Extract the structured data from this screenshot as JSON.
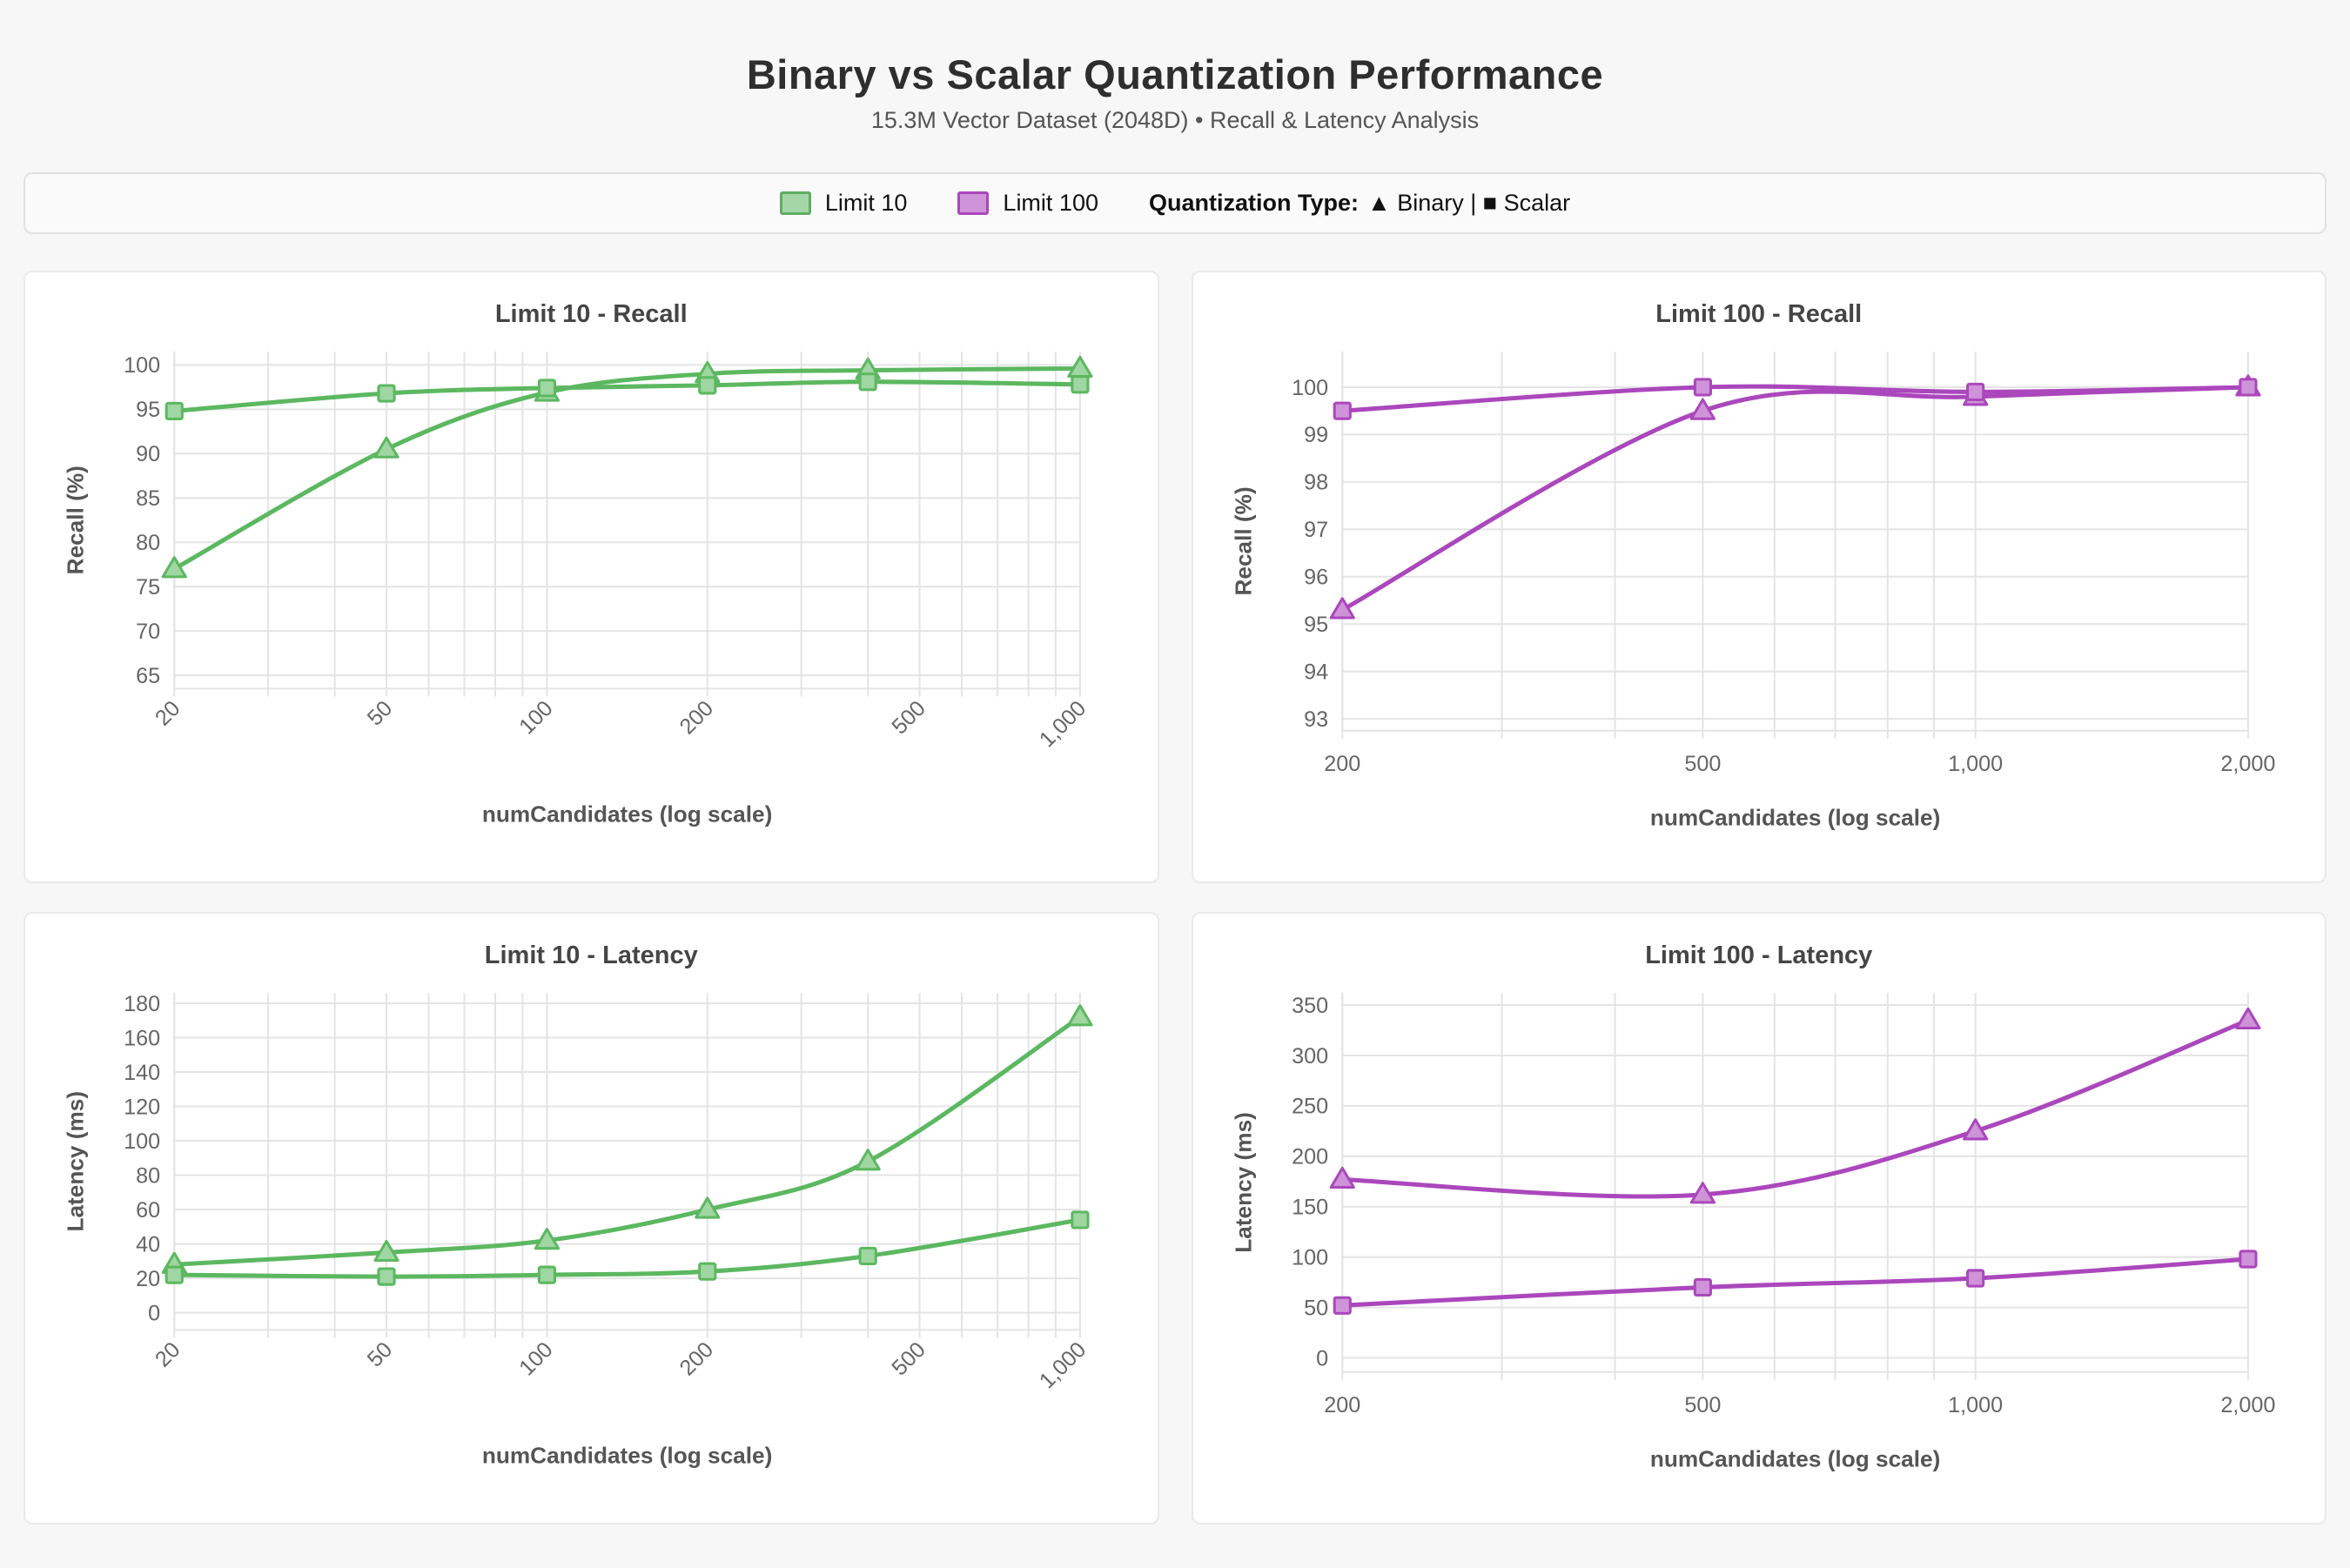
{
  "header": {
    "title": "Binary vs Scalar Quantization Performance",
    "subtitle": "15.3M Vector Dataset (2048D) • Recall & Latency Analysis"
  },
  "legend": {
    "limit10_label": "Limit 10",
    "limit100_label": "Limit 100",
    "quantization_label": "Quantization Type:",
    "quantization_value": "▲ Binary | ■ Scalar",
    "limit10_fill": "#a5d6a7",
    "limit10_border": "#5fad63",
    "limit100_fill": "#ce93d8",
    "limit100_border": "#ab47bc"
  },
  "chart_data": [
    {
      "id": "limit-10-recall",
      "type": "line",
      "title": "Limit 10 - Recall",
      "xlabel": "numCandidates (log scale)",
      "ylabel": "Recall (%)",
      "x_scale": "log",
      "x": [
        20,
        50,
        100,
        200,
        400,
        1000
      ],
      "x_tick_values": [
        20,
        50,
        100,
        200,
        500,
        1000
      ],
      "x_tick_labels": [
        "20",
        "50",
        "100",
        "200",
        "500",
        "1,000"
      ],
      "rotate_x_labels": true,
      "xlim": [
        20,
        1000
      ],
      "ylim": [
        63.5,
        101.5
      ],
      "y_ticks": [
        65,
        70,
        75,
        80,
        85,
        90,
        95,
        100
      ],
      "grid": true,
      "legend_position": "none",
      "line_color": "#5cb860",
      "marker_fill": "#9fd6a2",
      "series": [
        {
          "name": "Binary",
          "marker": "triangle",
          "values": [
            77,
            90.5,
            96.9,
            99,
            99.4,
            99.6
          ]
        },
        {
          "name": "Scalar",
          "marker": "square",
          "values": [
            94.8,
            96.8,
            97.4,
            97.7,
            98.1,
            97.8
          ]
        }
      ]
    },
    {
      "id": "limit-100-recall",
      "type": "line",
      "title": "Limit 100 - Recall",
      "xlabel": "numCandidates (log scale)",
      "ylabel": "Recall (%)",
      "x_scale": "log",
      "x": [
        200,
        500,
        1000,
        2000
      ],
      "x_tick_values": [
        200,
        500,
        1000,
        2000
      ],
      "x_tick_labels": [
        "200",
        "500",
        "1,000",
        "2,000"
      ],
      "rotate_x_labels": false,
      "xlim": [
        200,
        2000
      ],
      "ylim": [
        92.75,
        100.75
      ],
      "y_ticks": [
        93,
        94,
        95,
        96,
        97,
        98,
        99,
        100
      ],
      "grid": true,
      "legend_position": "none",
      "line_color": "#ab47bc",
      "marker_fill": "#ce93d8",
      "series": [
        {
          "name": "Binary",
          "marker": "triangle",
          "values": [
            95.3,
            99.5,
            99.8,
            100
          ]
        },
        {
          "name": "Scalar",
          "marker": "square",
          "values": [
            99.5,
            100,
            99.9,
            100
          ]
        }
      ]
    },
    {
      "id": "limit-10-latency",
      "type": "line",
      "title": "Limit 10 - Latency",
      "xlabel": "numCandidates (log scale)",
      "ylabel": "Latency (ms)",
      "x_scale": "log",
      "x": [
        20,
        50,
        100,
        200,
        400,
        1000
      ],
      "x_tick_values": [
        20,
        50,
        100,
        200,
        500,
        1000
      ],
      "x_tick_labels": [
        "20",
        "50",
        "100",
        "200",
        "500",
        "1,000"
      ],
      "rotate_x_labels": true,
      "xlim": [
        20,
        1000
      ],
      "ylim": [
        -10,
        186
      ],
      "y_ticks": [
        0,
        20,
        40,
        60,
        80,
        100,
        120,
        140,
        160,
        180
      ],
      "grid": true,
      "legend_position": "none",
      "line_color": "#5cb860",
      "marker_fill": "#9fd6a2",
      "series": [
        {
          "name": "Binary",
          "marker": "triangle",
          "values": [
            28,
            35,
            42,
            60,
            88,
            172
          ]
        },
        {
          "name": "Scalar",
          "marker": "square",
          "values": [
            22,
            21,
            22,
            24,
            33,
            54
          ]
        }
      ]
    },
    {
      "id": "limit-100-latency",
      "type": "line",
      "title": "Limit 100 - Latency",
      "xlabel": "numCandidates (log scale)",
      "ylabel": "Latency (ms)",
      "x_scale": "log",
      "x": [
        200,
        500,
        1000,
        2000
      ],
      "x_tick_values": [
        200,
        500,
        1000,
        2000
      ],
      "x_tick_labels": [
        "200",
        "500",
        "1,000",
        "2,000"
      ],
      "rotate_x_labels": false,
      "xlim": [
        200,
        2000
      ],
      "ylim": [
        -14,
        362
      ],
      "y_ticks": [
        0,
        50,
        100,
        150,
        200,
        250,
        300,
        350
      ],
      "grid": true,
      "legend_position": "none",
      "line_color": "#ab47bc",
      "marker_fill": "#ce93d8",
      "series": [
        {
          "name": "Binary",
          "marker": "triangle",
          "values": [
            177,
            162,
            225,
            335
          ]
        },
        {
          "name": "Scalar",
          "marker": "square",
          "values": [
            52,
            70,
            79,
            98
          ]
        }
      ]
    }
  ]
}
